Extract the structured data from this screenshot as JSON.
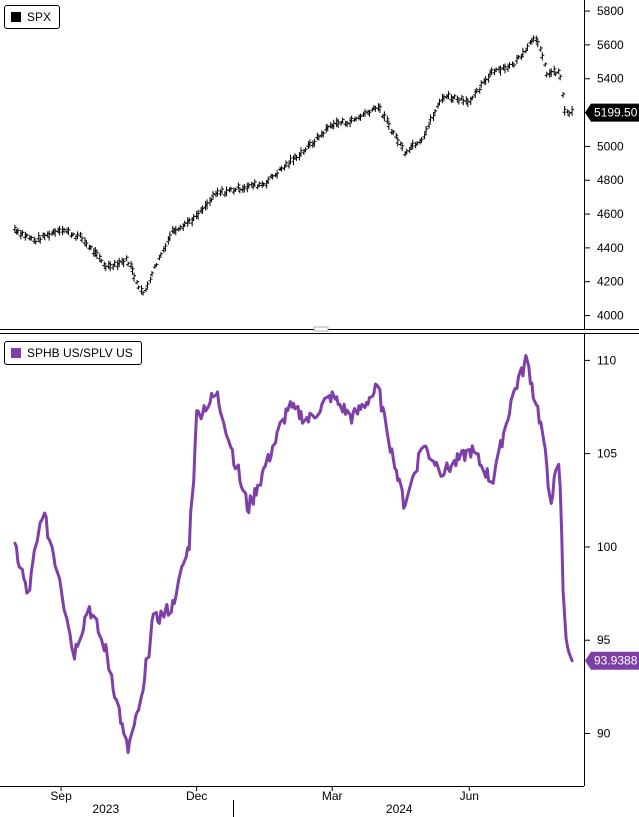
{
  "chart_data": [
    {
      "type": "ohlc",
      "legend": "SPX",
      "last_value_label": "5199.50",
      "color": "#000000",
      "ylim": [
        3950,
        5830
      ],
      "y_ticks": [
        4000,
        4200,
        4400,
        4600,
        4800,
        5000,
        5200,
        5400,
        5600,
        5800
      ],
      "y_tick_labels": [
        "4000",
        "4200",
        "4400",
        "4600",
        "4800",
        "5000",
        "5200",
        "5400",
        "5600",
        "5800"
      ],
      "x": [
        "2023-08-01",
        "2023-08-15",
        "2023-09-01",
        "2023-09-15",
        "2023-10-02",
        "2023-10-16",
        "2023-10-27",
        "2023-11-01",
        "2023-11-15",
        "2023-12-01",
        "2023-12-15",
        "2024-01-02",
        "2024-01-16",
        "2024-02-01",
        "2024-02-15",
        "2024-03-01",
        "2024-03-15",
        "2024-04-01",
        "2024-04-19",
        "2024-05-01",
        "2024-05-15",
        "2024-06-03",
        "2024-06-17",
        "2024-07-01",
        "2024-07-16",
        "2024-07-24",
        "2024-08-01",
        "2024-08-05",
        "2024-08-09"
      ],
      "values": [
        4515,
        4440,
        4515,
        4460,
        4290,
        4330,
        4120,
        4240,
        4500,
        4580,
        4720,
        4760,
        4780,
        4900,
        5000,
        5130,
        5150,
        5240,
        4970,
        5050,
        5300,
        5270,
        5450,
        5480,
        5660,
        5430,
        5440,
        5190,
        5200
      ]
    },
    {
      "type": "line",
      "legend": "SPHB US/SPLV US",
      "last_value_label": "93.9388",
      "color": "#7f3fa8",
      "ylim": [
        87.4,
        111.2
      ],
      "y_ticks": [
        90,
        95,
        100,
        105,
        110
      ],
      "y_tick_labels": [
        "90",
        "95",
        "100",
        "105",
        "110"
      ],
      "x": [
        "2023-08-01",
        "2023-08-10",
        "2023-08-20",
        "2023-08-31",
        "2023-09-10",
        "2023-09-20",
        "2023-10-02",
        "2023-10-16",
        "2023-10-27",
        "2023-11-01",
        "2023-11-15",
        "2023-11-27",
        "2023-12-01",
        "2023-12-15",
        "2024-01-05",
        "2024-01-20",
        "2024-02-01",
        "2024-02-15",
        "2024-03-01",
        "2024-03-15",
        "2024-04-01",
        "2024-04-19",
        "2024-05-01",
        "2024-05-15",
        "2024-06-03",
        "2024-06-17",
        "2024-07-01",
        "2024-07-10",
        "2024-07-20",
        "2024-07-26",
        "2024-08-01",
        "2024-08-05",
        "2024-08-09"
      ],
      "values": [
        100.2,
        97.4,
        101.9,
        98.5,
        94.3,
        96.8,
        94.3,
        89.0,
        92.3,
        95.9,
        96.8,
        100.3,
        107.0,
        108.2,
        102.0,
        105.0,
        107.5,
        106.8,
        108.1,
        106.9,
        108.5,
        102.2,
        105.5,
        104.0,
        105.2,
        103.5,
        108.2,
        110.0,
        106.5,
        102.6,
        104.4,
        95.4,
        93.9
      ]
    }
  ],
  "x_axis": {
    "month_ticks": [
      {
        "label": "Sep",
        "date": "2023-09-01"
      },
      {
        "label": "Dec",
        "date": "2023-12-01"
      },
      {
        "label": "Mar",
        "date": "2024-03-01"
      },
      {
        "label": "Jun",
        "date": "2024-06-01"
      }
    ],
    "years": [
      {
        "label": "2023",
        "date": "2023-10-01"
      },
      {
        "label": "2024",
        "date": "2024-04-15"
      }
    ]
  }
}
